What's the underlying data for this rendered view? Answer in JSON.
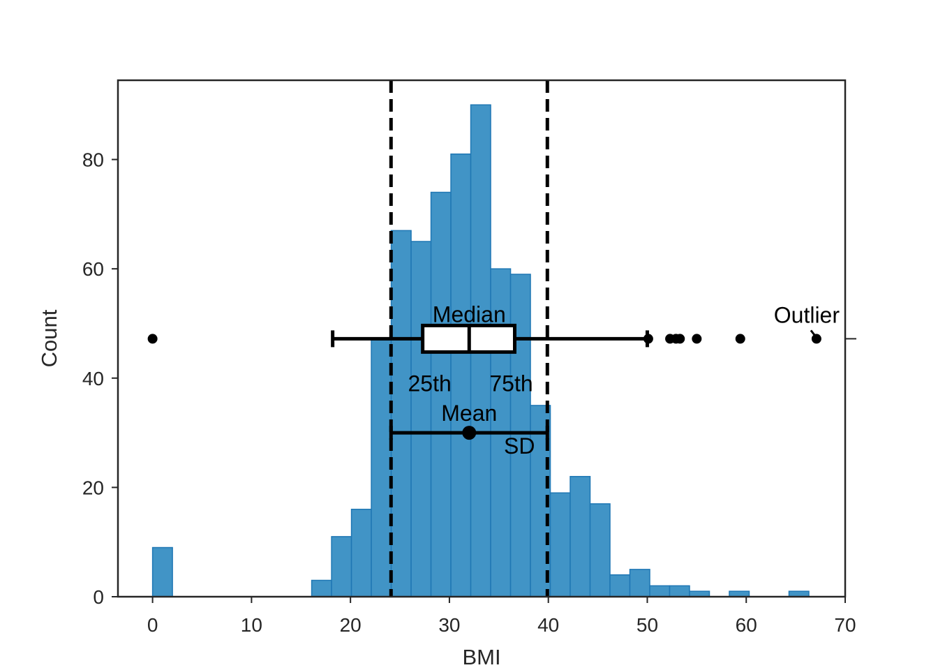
{
  "chart_data": {
    "type": "histogram",
    "xlabel": "BMI",
    "ylabel": "Count",
    "xlim": [
      -3.5,
      70
    ],
    "ylim": [
      0,
      94.5
    ],
    "x_ticks": [
      0,
      10,
      20,
      30,
      40,
      50,
      60,
      70
    ],
    "y_ticks": [
      0,
      20,
      40,
      60,
      80
    ],
    "grid": false,
    "bin_width": 2.01,
    "bin_starts": [
      0,
      2.01,
      4.02,
      6.03,
      8.04,
      10.05,
      12.06,
      14.07,
      16.08,
      18.09,
      20.1,
      22.11,
      24.12,
      26.13,
      28.14,
      30.15,
      32.16,
      34.17,
      36.18,
      38.19,
      40.2,
      42.21,
      44.22,
      46.23,
      48.24,
      50.25,
      52.26,
      54.27,
      56.28,
      58.29,
      60.3,
      62.31,
      64.32,
      66.33
    ],
    "counts": [
      9,
      0,
      0,
      0,
      0,
      0,
      0,
      0,
      3,
      11,
      16,
      47,
      67,
      65,
      74,
      81,
      90,
      60,
      59,
      35,
      19,
      22,
      17,
      4,
      5,
      2,
      2,
      1,
      0,
      1,
      0,
      0,
      1,
      0
    ],
    "fill_color": "#4194c6",
    "edge_color": "#1f77b4",
    "boxplot": {
      "y": 47.2,
      "whisker_low": 18.2,
      "q1": 27.3,
      "median": 32.0,
      "q3": 36.6,
      "whisker_high": 50.0,
      "outliers": [
        0,
        50.1,
        52.3,
        52.9,
        53.3,
        55.0,
        59.4,
        67.1
      ]
    },
    "mean_sd": {
      "y": 30,
      "mean": 32.0,
      "low": 24.1,
      "high": 39.9
    },
    "sd_lines": [
      24.1,
      39.9
    ],
    "right_tick_y": 47.2,
    "annotations": {
      "median": "Median",
      "q1": "25th",
      "q3": "75th",
      "mean": "Mean",
      "sd": "SD",
      "outlier": "Outlier"
    }
  }
}
